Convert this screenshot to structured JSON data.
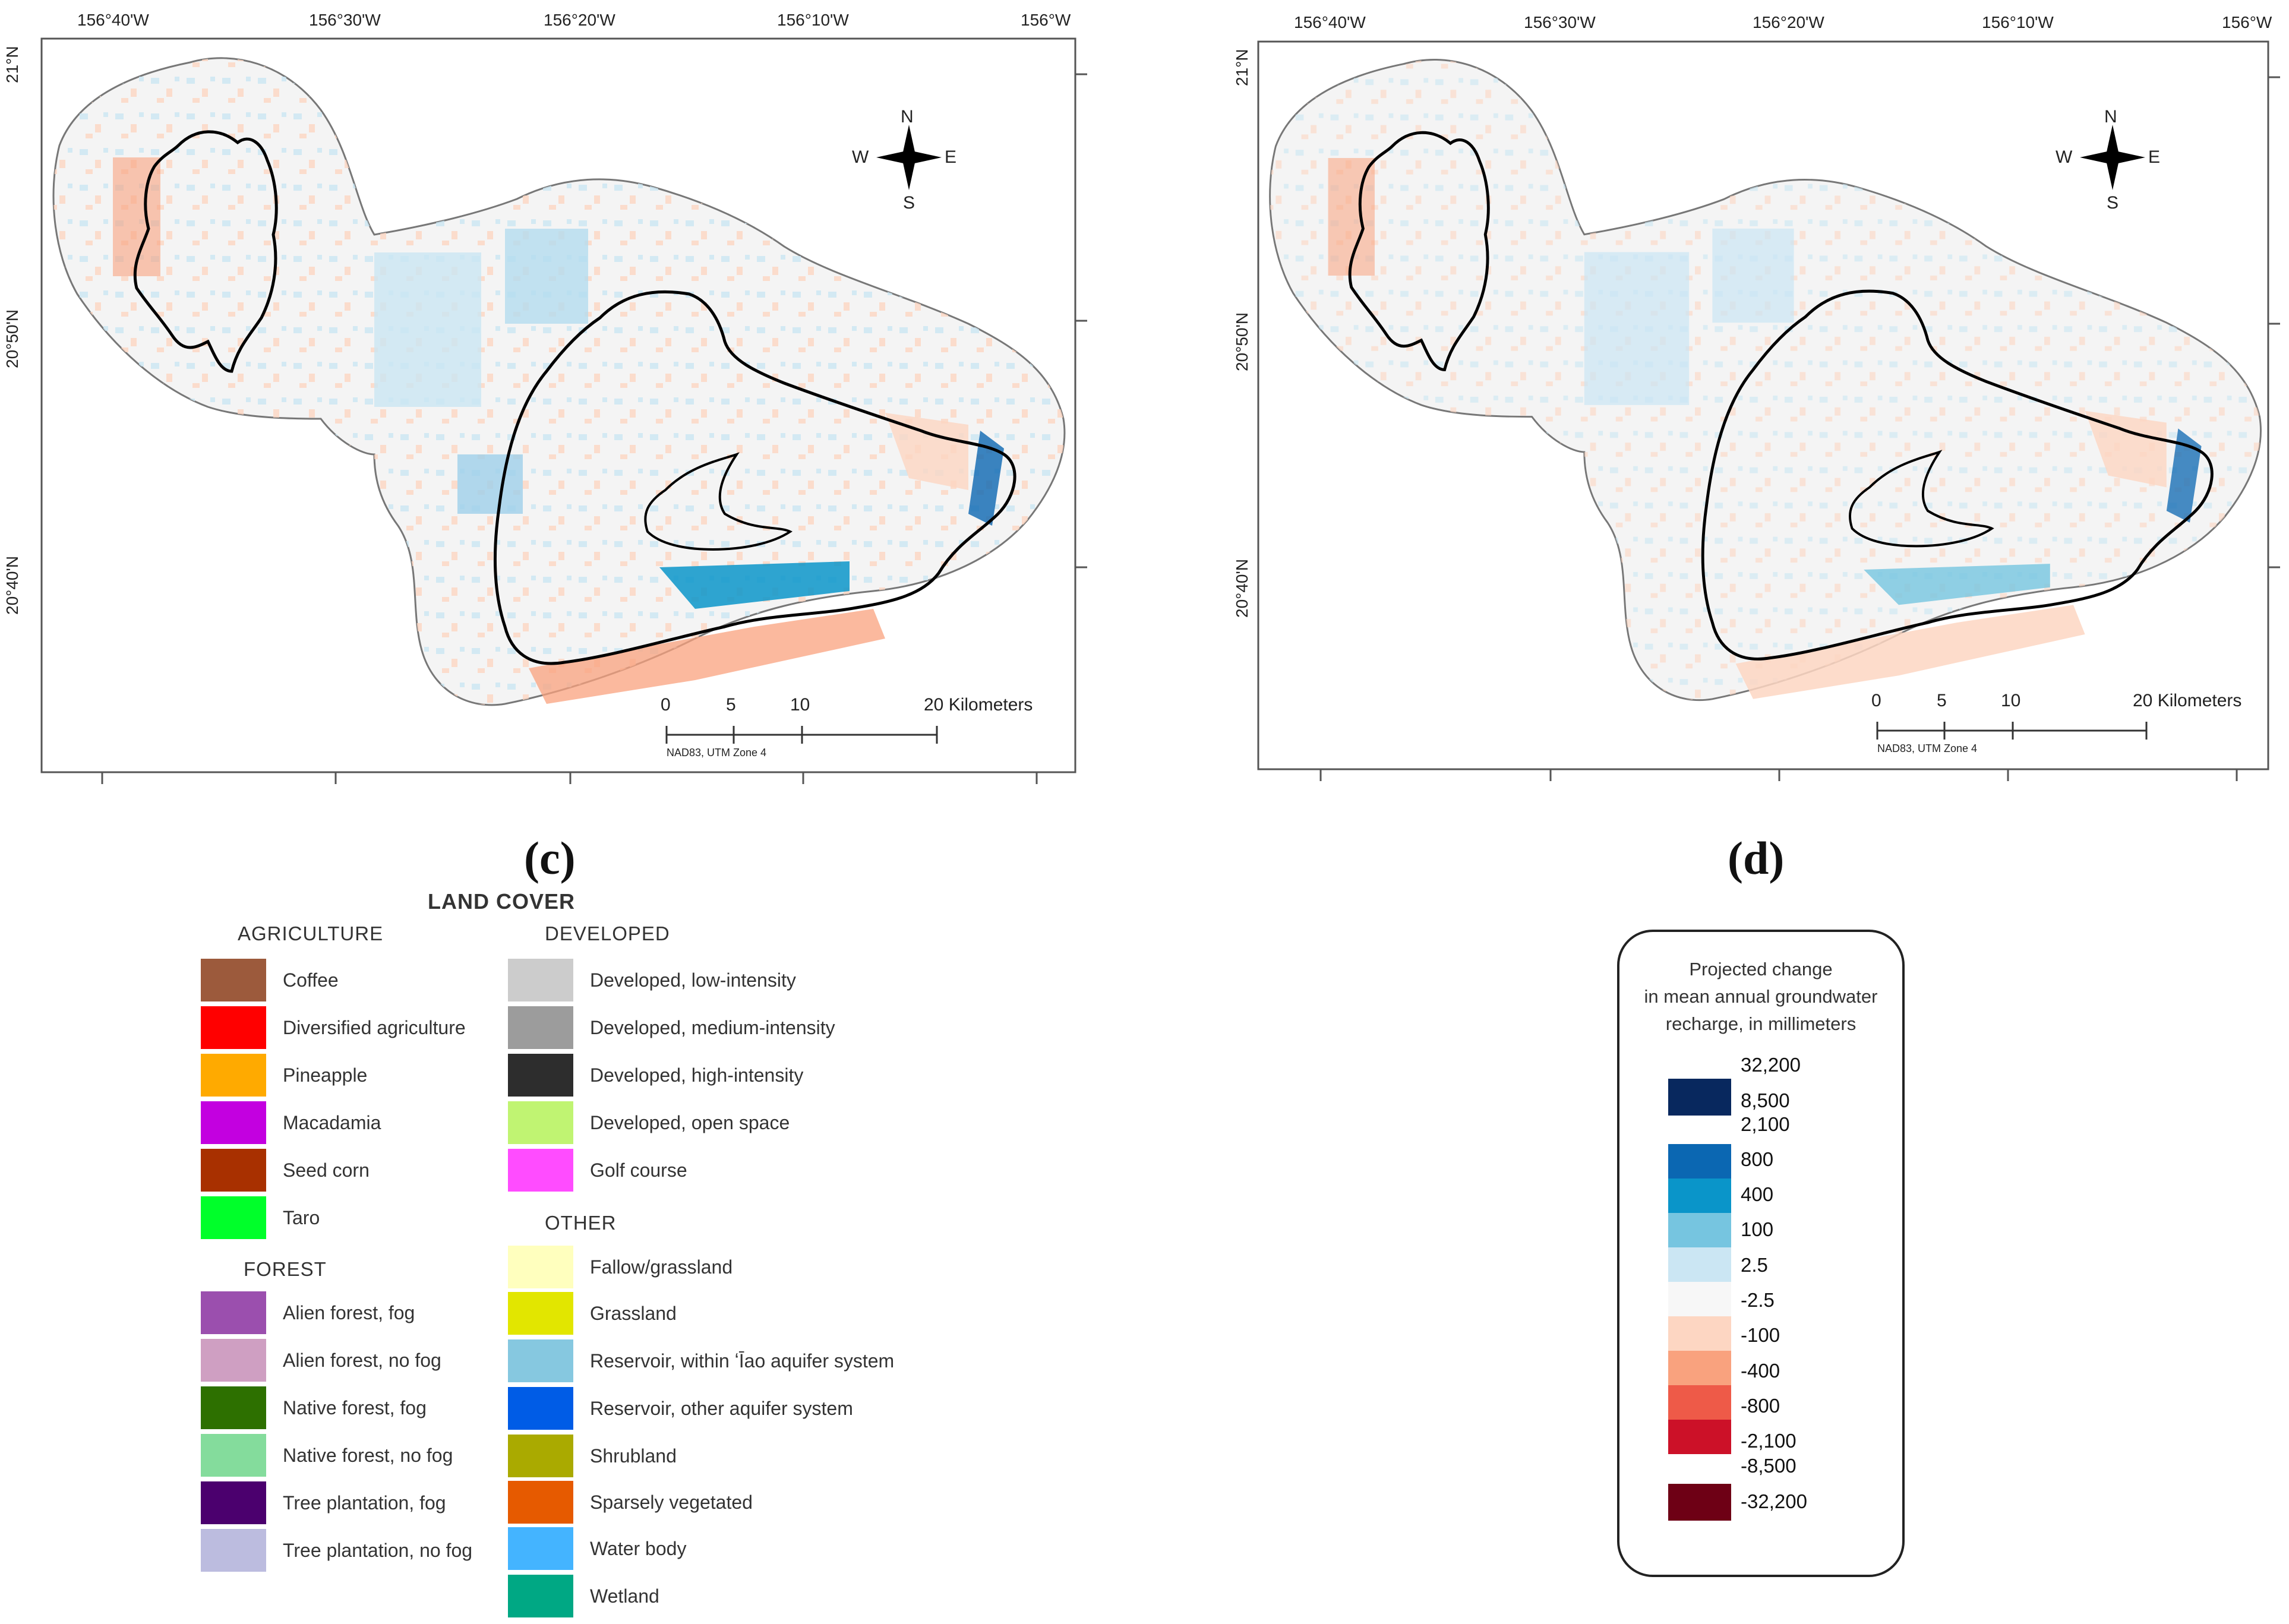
{
  "panels": [
    {
      "id": "c",
      "label": "(c)"
    },
    {
      "id": "d",
      "label": "(d)"
    }
  ],
  "map": {
    "lon_ticks": [
      "156°40'W",
      "156°30'W",
      "156°20'W",
      "156°10'W",
      "156°W"
    ],
    "lat_ticks": [
      "21°N",
      "20°50'N",
      "20°40'N"
    ],
    "north_arrow": {
      "n": "N",
      "s": "S",
      "e": "E",
      "w": "W"
    },
    "scale_bar": {
      "ticks": [
        "0",
        "5",
        "10",
        "20 Kilometers"
      ],
      "datum": "NAD83, UTM Zone 4"
    }
  },
  "land_cover": {
    "title": "LAND COVER",
    "sections": [
      {
        "name": "AGRICULTURE",
        "items": [
          {
            "label": "Coffee",
            "color": "#9c5a3c"
          },
          {
            "label": "Diversified agriculture",
            "color": "#ff0000"
          },
          {
            "label": "Pineapple",
            "color": "#ffaa00"
          },
          {
            "label": "Macadamia",
            "color": "#c300e0"
          },
          {
            "label": "Seed corn",
            "color": "#a83000"
          },
          {
            "label": "Taro",
            "color": "#00ff2a"
          }
        ]
      },
      {
        "name": "FOREST",
        "items": [
          {
            "label": "Alien forest, fog",
            "color": "#9b4fae"
          },
          {
            "label": "Alien forest, no fog",
            "color": "#cf9fc2"
          },
          {
            "label": "Native forest, fog",
            "color": "#2d7000"
          },
          {
            "label": "Native forest, no fog",
            "color": "#84dc9c"
          },
          {
            "label": "Tree plantation, fog",
            "color": "#4b006e"
          },
          {
            "label": "Tree plantation, no fog",
            "color": "#bcbcdf"
          }
        ]
      },
      {
        "name": "DEVELOPED",
        "items": [
          {
            "label": "Developed, low-intensity",
            "color": "#cccccc"
          },
          {
            "label": "Developed, medium-intensity",
            "color": "#9c9c9c"
          },
          {
            "label": "Developed, high-intensity",
            "color": "#2d2d2d"
          },
          {
            "label": "Developed, open space",
            "color": "#c0f472"
          },
          {
            "label": "Golf course",
            "color": "#ff4cff"
          }
        ]
      },
      {
        "name": "OTHER",
        "items": [
          {
            "label": "Fallow/grassland",
            "color": "#ffffbe"
          },
          {
            "label": "Grassland",
            "color": "#e2e600"
          },
          {
            "label": "Reservoir, within ʻĪao aquifer system",
            "color": "#86c8e0"
          },
          {
            "label": "Reservoir, other aquifer system",
            "color": "#005ce6"
          },
          {
            "label": "Shrubland",
            "color": "#aaaa00"
          },
          {
            "label": "Sparsely vegetated",
            "color": "#e65a00"
          },
          {
            "label": "Water body",
            "color": "#44b4ff"
          },
          {
            "label": "Wetland",
            "color": "#00a884"
          }
        ]
      }
    ]
  },
  "recharge_legend": {
    "title_lines": [
      "Projected change",
      "in mean annual groundwater",
      "recharge, in millimeters"
    ],
    "classes": [
      {
        "color": "#08285e",
        "labels": [
          "32,200",
          "8,500"
        ]
      },
      {
        "color": "#0b67b2",
        "labels": [
          "2,100"
        ]
      },
      {
        "color": "#0a95c9",
        "labels": [
          "800"
        ]
      },
      {
        "color": "#76c5e0",
        "labels": [
          "400"
        ]
      },
      {
        "color": "#cbe6f3",
        "labels": [
          "100"
        ]
      },
      {
        "color": "#f7f7f7",
        "labels": [
          "2.5"
        ]
      },
      {
        "color": "#fdd6c2",
        "labels": [
          "-2.5"
        ]
      },
      {
        "color": "#f9a27e",
        "labels": [
          "-100"
        ]
      },
      {
        "color": "#ee5a48",
        "labels": [
          "-400"
        ]
      },
      {
        "color": "#cc1128",
        "labels": [
          "-800",
          "-2,100"
        ]
      },
      {
        "color": "#6e0015",
        "labels": [
          "-8,500",
          "-32,200"
        ]
      }
    ]
  }
}
